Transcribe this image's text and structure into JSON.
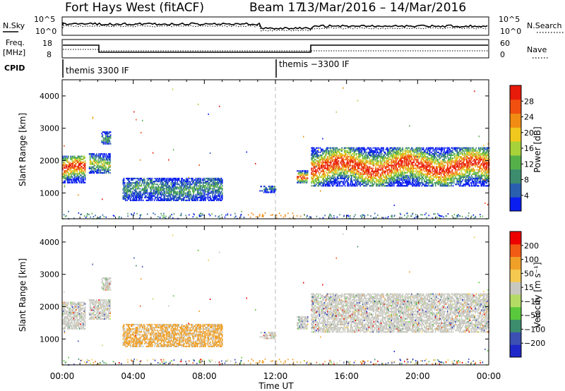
{
  "header": {
    "station": "Fort Hays West (fitACF)",
    "beam": "Beam 17",
    "date_range": "13/Mar/2016 – 14/Mar/2016"
  },
  "noise_panel": {
    "left_label": "N.Sky",
    "right_label": "N.Search",
    "left_ticks": [
      "10^5",
      "10^0"
    ],
    "right_ticks": [
      "10^5",
      "10^0"
    ]
  },
  "freq_panel": {
    "left_label_1": "Freq.",
    "left_label_2": "[MHz]",
    "right_label": "Nave",
    "left_ticks": [
      "18",
      "8"
    ],
    "right_ticks": [
      "60",
      "0"
    ]
  },
  "cpid_panel": {
    "label": "CPID",
    "segments": [
      "themis 3300 IF",
      "themis −3300 IF"
    ]
  },
  "colors": {
    "power_scale": [
      "#0a1ef0",
      "#2a5fb0",
      "#3c8c6e",
      "#55b04a",
      "#a8d23a",
      "#f0c81e",
      "#f08c14",
      "#f05010",
      "#e81a0a"
    ],
    "velocity_scale": [
      "#ee0000",
      "#f05a14",
      "#f0a028",
      "#f5c850",
      "#c8c8c0",
      "#b4dc64",
      "#5ac83c",
      "#3c8c6e",
      "#3c50b4",
      "#1e28c8"
    ],
    "ground_scatter": "#a0a0a0"
  },
  "chart_data": [
    {
      "type": "heatmap",
      "name": "power",
      "ylabel": "Slant Range [km]",
      "yticks": [
        1000,
        2000,
        3000,
        4000
      ],
      "ylim": [
        200,
        4500
      ],
      "colorbar_label": "Power [dB]",
      "colorbar_ticks": [
        "4",
        "8",
        "12",
        "16",
        "20",
        "24",
        "28"
      ],
      "scatter_regions": [
        {
          "t0": 0.0,
          "t1": 1.3,
          "r0": 1300,
          "r1": 2150,
          "peak": 28
        },
        {
          "t0": 1.5,
          "t1": 2.7,
          "r0": 1600,
          "r1": 2200,
          "peak": 16
        },
        {
          "t0": 2.2,
          "t1": 2.7,
          "r0": 2500,
          "r1": 2900,
          "peak": 10
        },
        {
          "t0": 3.4,
          "t1": 9.0,
          "r0": 750,
          "r1": 1450,
          "peak": 10
        },
        {
          "t0": 11.1,
          "t1": 12.0,
          "r0": 1000,
          "r1": 1200,
          "peak": 8
        },
        {
          "t0": 13.2,
          "t1": 13.8,
          "r0": 1300,
          "r1": 1700,
          "peak": 28
        },
        {
          "t0": 14.0,
          "t1": 24.0,
          "r0": 1200,
          "r1": 2400,
          "peak": 28
        }
      ]
    },
    {
      "type": "heatmap",
      "name": "velocity",
      "ylabel": "Slant Range [km]",
      "yticks": [
        1000,
        2000,
        3000,
        4000
      ],
      "ylim": [
        200,
        4500
      ],
      "colorbar_label": "Velocity [m s⁻¹]",
      "colorbar_ticks": [
        "200",
        "100",
        "50",
        "15",
        "−15",
        "−50",
        "−100",
        "−200"
      ],
      "xlabel": "Time UT",
      "xticks": [
        "00:00",
        "04:00",
        "08:00",
        "12:00",
        "16:00",
        "20:00",
        "00:00"
      ],
      "xlim": [
        0,
        24
      ]
    }
  ]
}
